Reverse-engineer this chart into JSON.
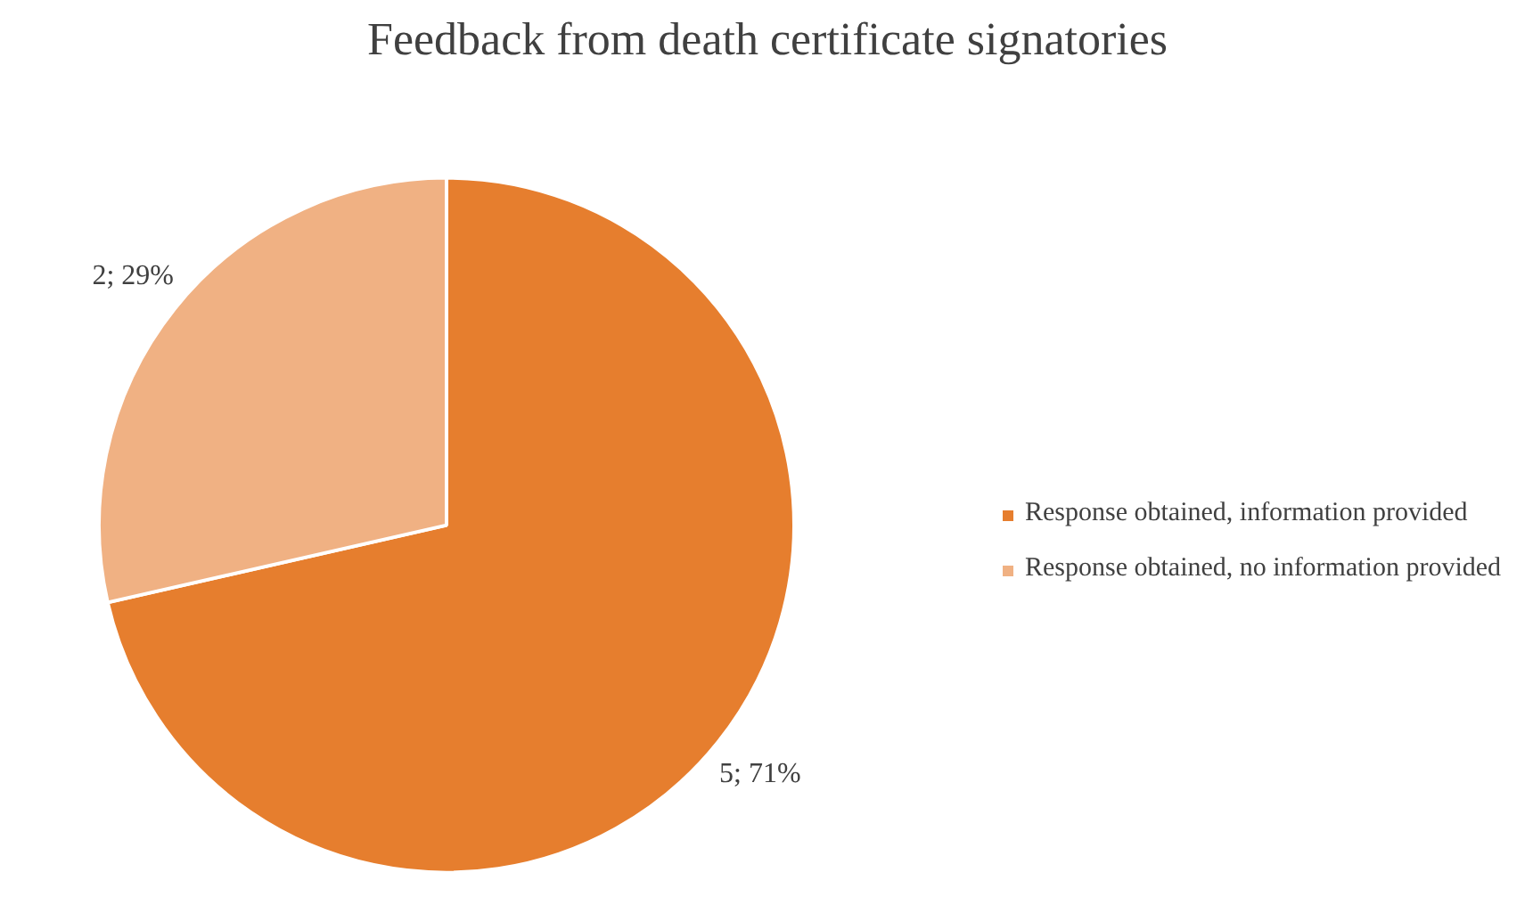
{
  "chart_data": {
    "type": "pie",
    "title": "Feedback from death certificate signatories",
    "categories": [
      "Response obtained, information provided",
      "Response obtained, no information provided"
    ],
    "values": [
      5,
      2
    ],
    "colors": [
      "#e67e2e",
      "#f0b183"
    ],
    "value_labels": [
      "5; 71%",
      "2; 29%"
    ],
    "legend": "right"
  }
}
